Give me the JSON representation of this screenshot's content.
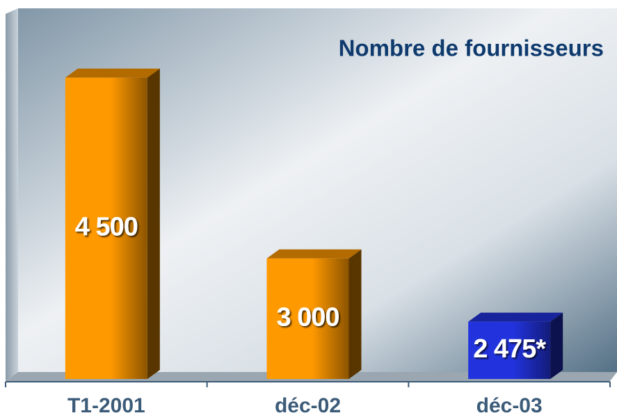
{
  "chart_data": {
    "type": "bar",
    "title": "Nombre de fournisseurs",
    "categories": [
      "T1-2001",
      "déc-02",
      "déc-03"
    ],
    "values": [
      4500,
      3000,
      2475
    ],
    "value_labels": [
      "4 500",
      "3 000",
      "2 475*"
    ],
    "colors": [
      "#ff9900",
      "#ff9900",
      "#2233dd"
    ],
    "ylim": [
      2000,
      5000
    ]
  }
}
